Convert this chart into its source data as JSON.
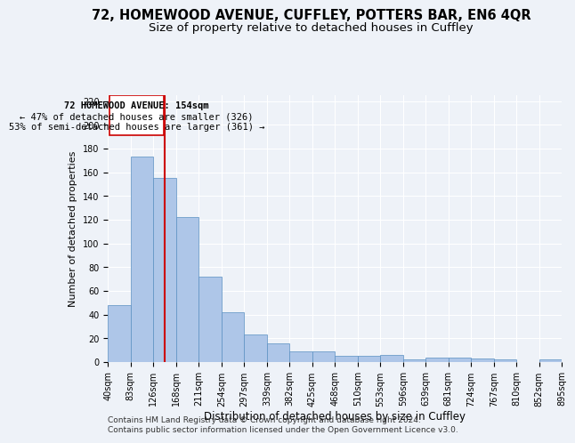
{
  "title1": "72, HOMEWOOD AVENUE, CUFFLEY, POTTERS BAR, EN6 4QR",
  "title2": "Size of property relative to detached houses in Cuffley",
  "xlabel": "Distribution of detached houses by size in Cuffley",
  "ylabel": "Number of detached properties",
  "bar_values": [
    48,
    173,
    155,
    122,
    72,
    42,
    23,
    16,
    9,
    9,
    5,
    5,
    6,
    2,
    4,
    4,
    3,
    2,
    0,
    2
  ],
  "categories": [
    "40sqm",
    "83sqm",
    "126sqm",
    "168sqm",
    "211sqm",
    "254sqm",
    "297sqm",
    "339sqm",
    "382sqm",
    "425sqm",
    "468sqm",
    "510sqm",
    "553sqm",
    "596sqm",
    "639sqm",
    "681sqm",
    "724sqm",
    "767sqm",
    "810sqm",
    "852sqm",
    "895sqm"
  ],
  "bar_color": "#aec6e8",
  "bar_edgecolor": "#5a8fc2",
  "vline_x": 2.5,
  "vline_color": "#cc0000",
  "annotation_line1": "72 HOMEWOOD AVENUE: 154sqm",
  "annotation_line2": "← 47% of detached houses are smaller (326)",
  "annotation_line3": "53% of semi-detached houses are larger (361) →",
  "annotation_box_color": "#cc0000",
  "ylim": [
    0,
    225
  ],
  "yticks": [
    0,
    20,
    40,
    60,
    80,
    100,
    120,
    140,
    160,
    180,
    200,
    220
  ],
  "footer1": "Contains HM Land Registry data © Crown copyright and database right 2024.",
  "footer2": "Contains public sector information licensed under the Open Government Licence v3.0.",
  "background_color": "#eef2f8",
  "grid_color": "#ffffff",
  "title1_fontsize": 10.5,
  "title2_fontsize": 9.5,
  "xlabel_fontsize": 8.5,
  "ylabel_fontsize": 8,
  "tick_fontsize": 7,
  "footer_fontsize": 6.5,
  "annotation_fontsize": 7.5
}
